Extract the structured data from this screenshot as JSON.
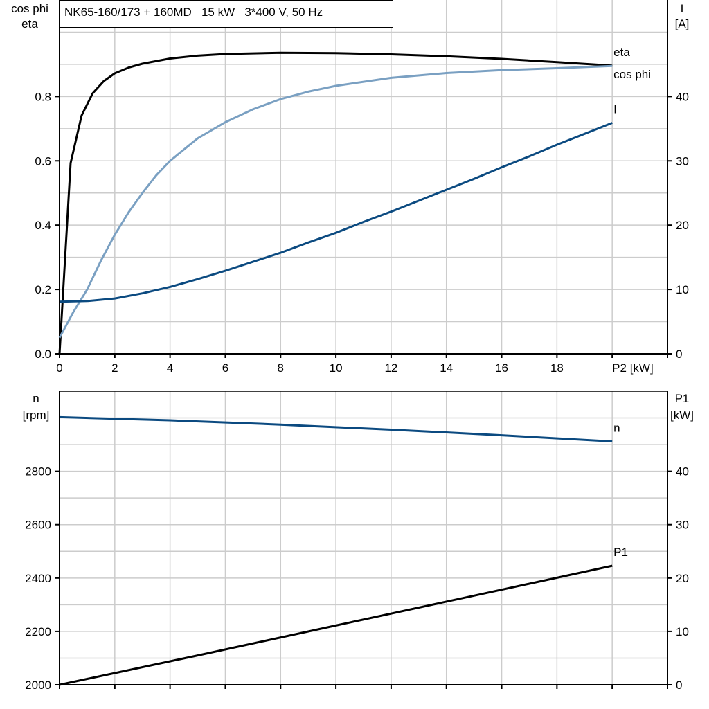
{
  "title": "NK65-160/173 + 160MD   15 kW   3*400 V, 50 Hz",
  "colors": {
    "eta": "#000000",
    "cos_phi": "#7aa0c2",
    "I": "#0b4a80",
    "n": "#0b4a80",
    "P1": "#000000",
    "grid": "#cccccc"
  },
  "chart_data": [
    {
      "type": "line",
      "xlabel": "P2 [kW]",
      "xlim": [
        0,
        22
      ],
      "x_ticks": [
        "0",
        "2",
        "4",
        "6",
        "8",
        "10",
        "12",
        "14",
        "16",
        "18"
      ],
      "left_axis": {
        "label_lines": [
          "cos phi",
          "eta"
        ],
        "ylim": [
          0,
          1.1
        ],
        "ticks": [
          "0.0",
          "0.2",
          "0.4",
          "0.6",
          "0.8"
        ]
      },
      "right_axis": {
        "label_lines": [
          "I",
          "[A]"
        ],
        "ylim": [
          0,
          55
        ],
        "ticks": [
          "0",
          "10",
          "20",
          "30",
          "40"
        ]
      },
      "grid": true,
      "series": [
        {
          "name": "eta",
          "axis": "left",
          "x": [
            0,
            0.4,
            0.8,
            1.2,
            1.6,
            2,
            2.5,
            3,
            4,
            5,
            6,
            8,
            10,
            12,
            14,
            16,
            18,
            20
          ],
          "y": [
            0,
            0.593,
            0.741,
            0.81,
            0.848,
            0.872,
            0.89,
            0.902,
            0.918,
            0.927,
            0.932,
            0.936,
            0.935,
            0.931,
            0.925,
            0.917,
            0.907,
            0.896
          ]
        },
        {
          "name": "cos phi",
          "axis": "left",
          "x": [
            0,
            0.5,
            1,
            1.5,
            2,
            2.5,
            3,
            3.5,
            4,
            5,
            6,
            7,
            8,
            9,
            10,
            12,
            14,
            16,
            18,
            20
          ],
          "y": [
            0.05,
            0.13,
            0.2,
            0.29,
            0.37,
            0.44,
            0.5,
            0.555,
            0.6,
            0.67,
            0.72,
            0.76,
            0.792,
            0.815,
            0.833,
            0.858,
            0.873,
            0.882,
            0.888,
            0.895
          ]
        },
        {
          "name": "I",
          "axis": "right",
          "x": [
            0,
            1,
            2,
            3,
            4,
            5,
            6,
            7,
            8,
            9,
            10,
            11,
            12,
            13,
            14,
            15,
            16,
            17,
            18,
            19,
            20
          ],
          "y": [
            8.1,
            8.2,
            8.6,
            9.4,
            10.4,
            11.6,
            12.9,
            14.3,
            15.7,
            17.3,
            18.8,
            20.5,
            22.1,
            23.8,
            25.5,
            27.2,
            29.0,
            30.7,
            32.5,
            34.2,
            35.9
          ]
        }
      ]
    },
    {
      "type": "line",
      "xlim": [
        0,
        22
      ],
      "left_axis": {
        "label_lines": [
          "n",
          "[rpm]"
        ],
        "ylim": [
          2000,
          3100
        ],
        "ticks": [
          "2000",
          "2200",
          "2400",
          "2600",
          "2800"
        ]
      },
      "right_axis": {
        "label_lines": [
          "P1",
          "[kW]"
        ],
        "ylim": [
          0,
          55
        ],
        "ticks": [
          "0",
          "10",
          "20",
          "30",
          "40"
        ]
      },
      "grid": true,
      "series": [
        {
          "name": "n",
          "axis": "left",
          "x": [
            0,
            4,
            8,
            12,
            16,
            20
          ],
          "y": [
            3003,
            2991,
            2975,
            2956,
            2935,
            2912
          ]
        },
        {
          "name": "P1",
          "axis": "right",
          "x": [
            0,
            5,
            10,
            15,
            20
          ],
          "y": [
            0,
            5.5,
            11.1,
            16.7,
            22.3
          ]
        }
      ]
    }
  ]
}
